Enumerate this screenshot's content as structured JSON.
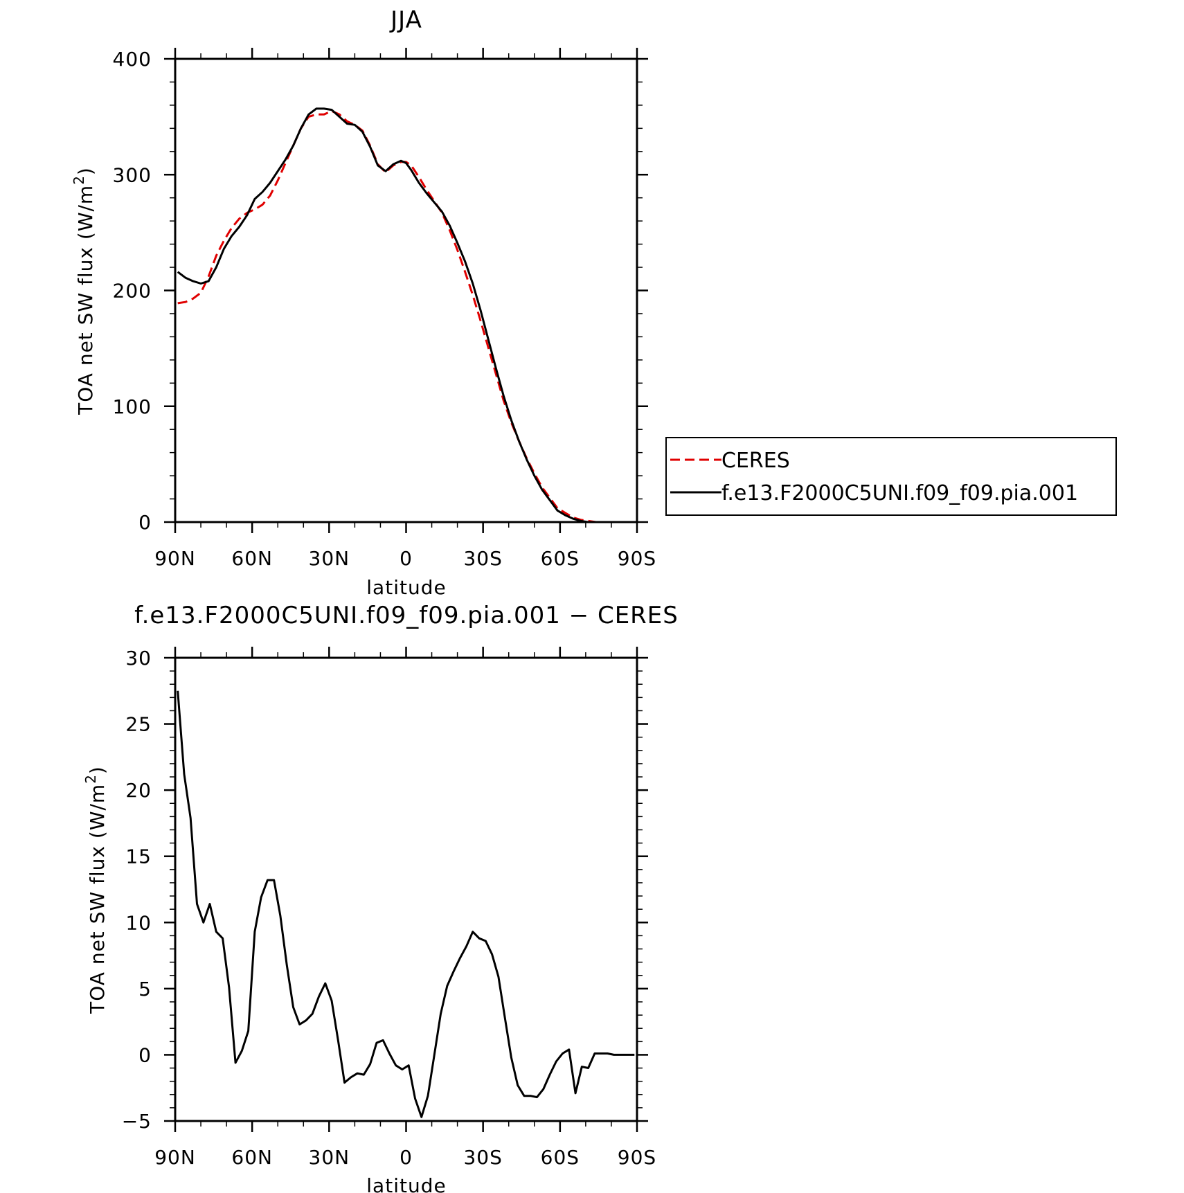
{
  "chart_data": [
    {
      "type": "line",
      "title": "JJA",
      "xlabel": "latitude",
      "ylabel": "TOA net SW flux (W/m²)",
      "ylabel_main": "TOA net SW flux (W/m",
      "ylabel_sup": "2",
      "ylabel_close": ")",
      "xlim": [
        90,
        -90
      ],
      "ylim": [
        0,
        400
      ],
      "xticks": [
        90,
        60,
        30,
        0,
        -30,
        -60,
        -90
      ],
      "xticklabels": [
        "90N",
        "60N",
        "30N",
        "0",
        "30S",
        "60S",
        "90S"
      ],
      "yticks": [
        0,
        100,
        200,
        300,
        400
      ],
      "yticklabels": [
        "0",
        "100",
        "200",
        "300",
        "400"
      ],
      "legend_position": "right",
      "series": [
        {
          "name": "CERES",
          "color": "#e00000",
          "style": "dashed",
          "x": [
            89,
            86,
            83,
            80,
            77,
            74,
            71,
            68,
            65,
            62,
            59,
            56,
            53,
            50,
            47,
            44,
            41,
            38,
            35,
            32,
            29,
            26,
            23,
            20,
            17,
            14,
            11,
            8,
            5,
            2,
            0,
            -2,
            -5,
            -8,
            -11,
            -14,
            -17,
            -20,
            -23,
            -26,
            -29,
            -32,
            -35,
            -38,
            -41,
            -44,
            -47,
            -50,
            -53,
            -56,
            -59,
            -62,
            -65,
            -68,
            -71,
            -74,
            -77,
            -80,
            -83,
            -86,
            -89
          ],
          "y": [
            189,
            190,
            193,
            198,
            212,
            230,
            243,
            254,
            262,
            267,
            270,
            274,
            282,
            295,
            310,
            325,
            340,
            350,
            352,
            352,
            355,
            352,
            346,
            343,
            338,
            325,
            309,
            302,
            308,
            311,
            311,
            308,
            298,
            287,
            277,
            267,
            252,
            235,
            216,
            196,
            174,
            151,
            128,
            105,
            86,
            70,
            55,
            42,
            30,
            21,
            12,
            8,
            4,
            2,
            1,
            0,
            0,
            0,
            0,
            0,
            0
          ]
        },
        {
          "name": "f.e13.F2000C5UNI.f09_f09.pia.001",
          "color": "#000000",
          "style": "solid",
          "x": [
            89,
            86,
            83,
            80,
            77,
            74,
            71,
            68,
            65,
            62,
            59,
            56,
            53,
            50,
            47,
            44,
            41,
            38,
            35,
            32,
            29,
            26,
            23,
            20,
            17,
            14,
            11,
            8,
            5,
            2,
            0,
            -2,
            -5,
            -8,
            -11,
            -14,
            -17,
            -20,
            -23,
            -26,
            -29,
            -32,
            -35,
            -38,
            -41,
            -44,
            -47,
            -50,
            -53,
            -56,
            -59,
            -62,
            -65,
            -68,
            -71,
            -74,
            -77,
            -80,
            -83,
            -86,
            -89
          ],
          "y": [
            216,
            211,
            208,
            206,
            208,
            220,
            236,
            247,
            255,
            265,
            279,
            285,
            293,
            303,
            313,
            325,
            340,
            352,
            357,
            357,
            356,
            350,
            344,
            343,
            337,
            324,
            308,
            303,
            309,
            312,
            310,
            304,
            293,
            284,
            276,
            268,
            256,
            241,
            225,
            206,
            183,
            158,
            133,
            109,
            88,
            70,
            54,
            40,
            28,
            19,
            10,
            6,
            3,
            1,
            0,
            0,
            0,
            0,
            0,
            0,
            0
          ]
        }
      ]
    },
    {
      "type": "line",
      "title": "f.e13.F2000C5UNI.f09_f09.pia.001 − CERES",
      "xlabel": "latitude",
      "ylabel": "TOA net SW flux (W/m²)",
      "ylabel_main": "TOA net SW flux (W/m",
      "ylabel_sup": "2",
      "ylabel_close": ")",
      "xlim": [
        90,
        -90
      ],
      "ylim": [
        -5,
        30
      ],
      "xticks": [
        90,
        60,
        30,
        0,
        -30,
        -60,
        -90
      ],
      "xticklabels": [
        "90N",
        "60N",
        "30N",
        "0",
        "30S",
        "60S",
        "90S"
      ],
      "yticks": [
        -5,
        0,
        5,
        10,
        15,
        20,
        25,
        30
      ],
      "yticklabels": [
        "−5",
        "0",
        "5",
        "10",
        "15",
        "20",
        "25",
        "30"
      ],
      "series": [
        {
          "color": "#000000",
          "style": "solid",
          "x": [
            89,
            86.5,
            84,
            81.5,
            79,
            76.5,
            74,
            71.5,
            69,
            66.5,
            64,
            61.5,
            59,
            56.5,
            54,
            51.5,
            49,
            46.5,
            44,
            41.5,
            39,
            36.5,
            34,
            31.5,
            29,
            26.5,
            24,
            21.5,
            19,
            16.5,
            14,
            11.5,
            9,
            6.5,
            4,
            1.5,
            -1,
            -3.5,
            -6,
            -8.5,
            -11,
            -13.5,
            -16,
            -18.5,
            -21,
            -23.5,
            -26,
            -28.5,
            -31,
            -33.5,
            -36,
            -38.5,
            -41,
            -43.5,
            -46,
            -48.5,
            -51,
            -53.5,
            -56,
            -58.5,
            -61,
            -63.5,
            -66,
            -68.5,
            -71,
            -73.5,
            -76,
            -78.5,
            -81,
            -83.5,
            -86,
            -89
          ],
          "y": [
            27.5,
            21.2,
            17.9,
            11.4,
            10.0,
            11.4,
            9.3,
            8.8,
            5.1,
            -0.6,
            0.3,
            1.8,
            9.3,
            11.9,
            13.2,
            13.2,
            10.5,
            6.8,
            3.6,
            2.3,
            2.6,
            3.1,
            4.4,
            5.4,
            4.1,
            1.1,
            -2.1,
            -1.7,
            -1.4,
            -1.5,
            -0.7,
            0.9,
            1.1,
            0.1,
            -0.8,
            -1.1,
            -0.8,
            -3.3,
            -4.7,
            -3.1,
            0.0,
            3.1,
            5.2,
            6.3,
            7.3,
            8.2,
            9.3,
            8.8,
            8.6,
            7.6,
            5.9,
            2.8,
            -0.2,
            -2.3,
            -3.1,
            -3.1,
            -3.2,
            -2.6,
            -1.5,
            -0.5,
            0.1,
            0.4,
            -2.9,
            -0.9,
            -1.0,
            0.1,
            0.1,
            0.1,
            0.0,
            0.0,
            0.0,
            0.0
          ]
        }
      ]
    }
  ]
}
